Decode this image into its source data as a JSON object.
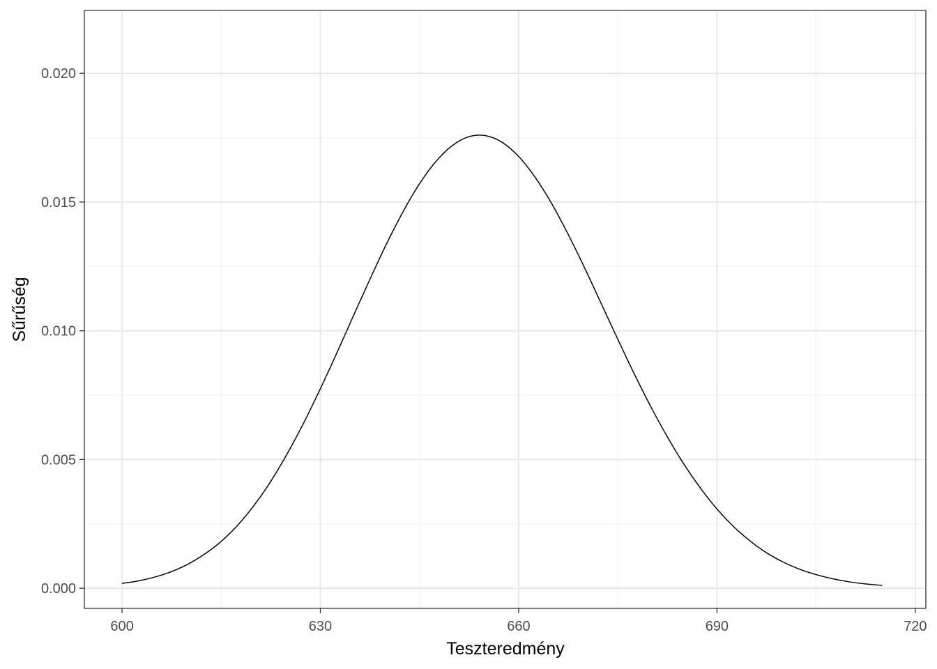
{
  "chart_data": {
    "type": "line",
    "xlabel": "Teszteredmény",
    "ylabel": "Sűrűség",
    "xlim": [
      594.3,
      721.6
    ],
    "ylim": [
      -0.00078,
      0.02244
    ],
    "x_ticks": [
      600,
      630,
      660,
      690,
      720
    ],
    "x_tick_labels": [
      "600",
      "630",
      "660",
      "690",
      "720"
    ],
    "y_ticks": [
      0,
      0.005,
      0.01,
      0.015,
      0.02
    ],
    "y_tick_labels": [
      "0.000",
      "0.005",
      "0.010",
      "0.015",
      "0.020"
    ],
    "x_minor_ticks": [
      615,
      645,
      675,
      705
    ],
    "y_minor_ticks": [
      0.0025,
      0.0075,
      0.0125,
      0.0175
    ],
    "grid": true,
    "series": [
      {
        "color": "#000000",
        "x": [
          600,
          602.5,
          605,
          607.5,
          610,
          612.5,
          615,
          617.5,
          620,
          622.5,
          625,
          627.5,
          630,
          632.5,
          635,
          637.5,
          640,
          642.5,
          645,
          647.5,
          650,
          652.5,
          655,
          657.5,
          660,
          662.5,
          665,
          667.5,
          670,
          672.5,
          675,
          677.5,
          680,
          682.5,
          685,
          687.5,
          690,
          692.5,
          695,
          697.5,
          700,
          702.5,
          705,
          707.5,
          710,
          712.5,
          715
        ],
        "y": [
          0.00019,
          0.00029,
          0.00044,
          0.00065,
          0.00094,
          0.00133,
          0.00182,
          0.00245,
          0.00323,
          0.00415,
          0.00523,
          0.00643,
          0.00775,
          0.00914,
          0.01058,
          0.012,
          0.01337,
          0.01462,
          0.01571,
          0.01658,
          0.0172,
          0.01754,
          0.01758,
          0.01732,
          0.01677,
          0.01596,
          0.01494,
          0.01374,
          0.01243,
          0.01105,
          0.00967,
          0.00832,
          0.00705,
          0.00588,
          0.00482,
          0.00389,
          0.00308,
          0.0024,
          0.00184,
          0.00138,
          0.00102,
          0.00074,
          0.00053,
          0.00037,
          0.00025,
          0.00017,
          0.00011
        ]
      }
    ]
  }
}
